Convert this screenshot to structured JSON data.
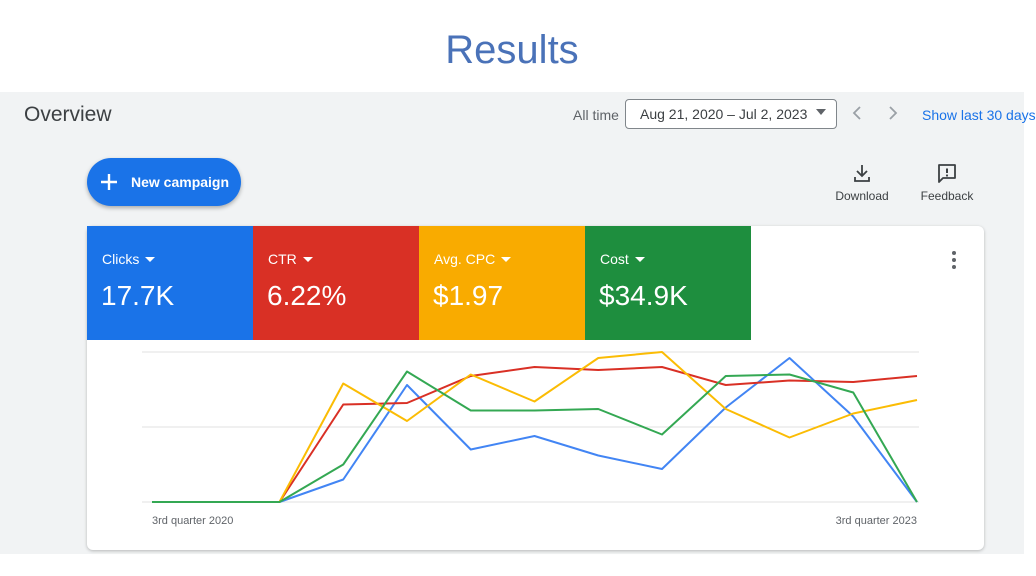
{
  "slide": {
    "title": "Results"
  },
  "header": {
    "title": "Overview",
    "range_label": "All time",
    "date_range": "Aug 21, 2020 – Jul 2, 2023",
    "show_last": "Show last 30 days"
  },
  "actions": {
    "new_campaign": "New campaign",
    "download": "Download",
    "feedback": "Feedback"
  },
  "metrics": [
    {
      "label": "Clicks",
      "value": "17.7K",
      "color": "#1a73e8"
    },
    {
      "label": "CTR",
      "value": "6.22%",
      "color": "#d93025"
    },
    {
      "label": "Avg. CPC",
      "value": "$1.97",
      "color": "#f9ab00"
    },
    {
      "label": "Cost",
      "value": "$34.9K",
      "color": "#1e8e3e"
    }
  ],
  "chart_data": {
    "type": "line",
    "x_labels": [
      "3rd quarter 2020",
      "3rd quarter 2023"
    ],
    "x": [
      0,
      1,
      2,
      3,
      4,
      5,
      6,
      7,
      8,
      9,
      10,
      11,
      12
    ],
    "ylim": [
      0,
      1
    ],
    "grid": true,
    "series": [
      {
        "name": "Clicks",
        "color": "#4285f4",
        "values": [
          0,
          0,
          0,
          0.15,
          0.78,
          0.35,
          0.44,
          0.31,
          0.22,
          0.63,
          0.96,
          0.57,
          0
        ]
      },
      {
        "name": "CTR",
        "color": "#d93025",
        "values": [
          0,
          0,
          0,
          0.65,
          0.66,
          0.84,
          0.9,
          0.88,
          0.9,
          0.78,
          0.81,
          0.8,
          0.84
        ]
      },
      {
        "name": "Avg. CPC",
        "color": "#fbbc04",
        "values": [
          0,
          0,
          0,
          0.79,
          0.54,
          0.85,
          0.67,
          0.96,
          1.0,
          0.62,
          0.43,
          0.59,
          0.68
        ]
      },
      {
        "name": "Cost",
        "color": "#34a853",
        "values": [
          0,
          0,
          0,
          0.25,
          0.87,
          0.61,
          0.61,
          0.62,
          0.45,
          0.84,
          0.85,
          0.73,
          0
        ]
      }
    ]
  }
}
